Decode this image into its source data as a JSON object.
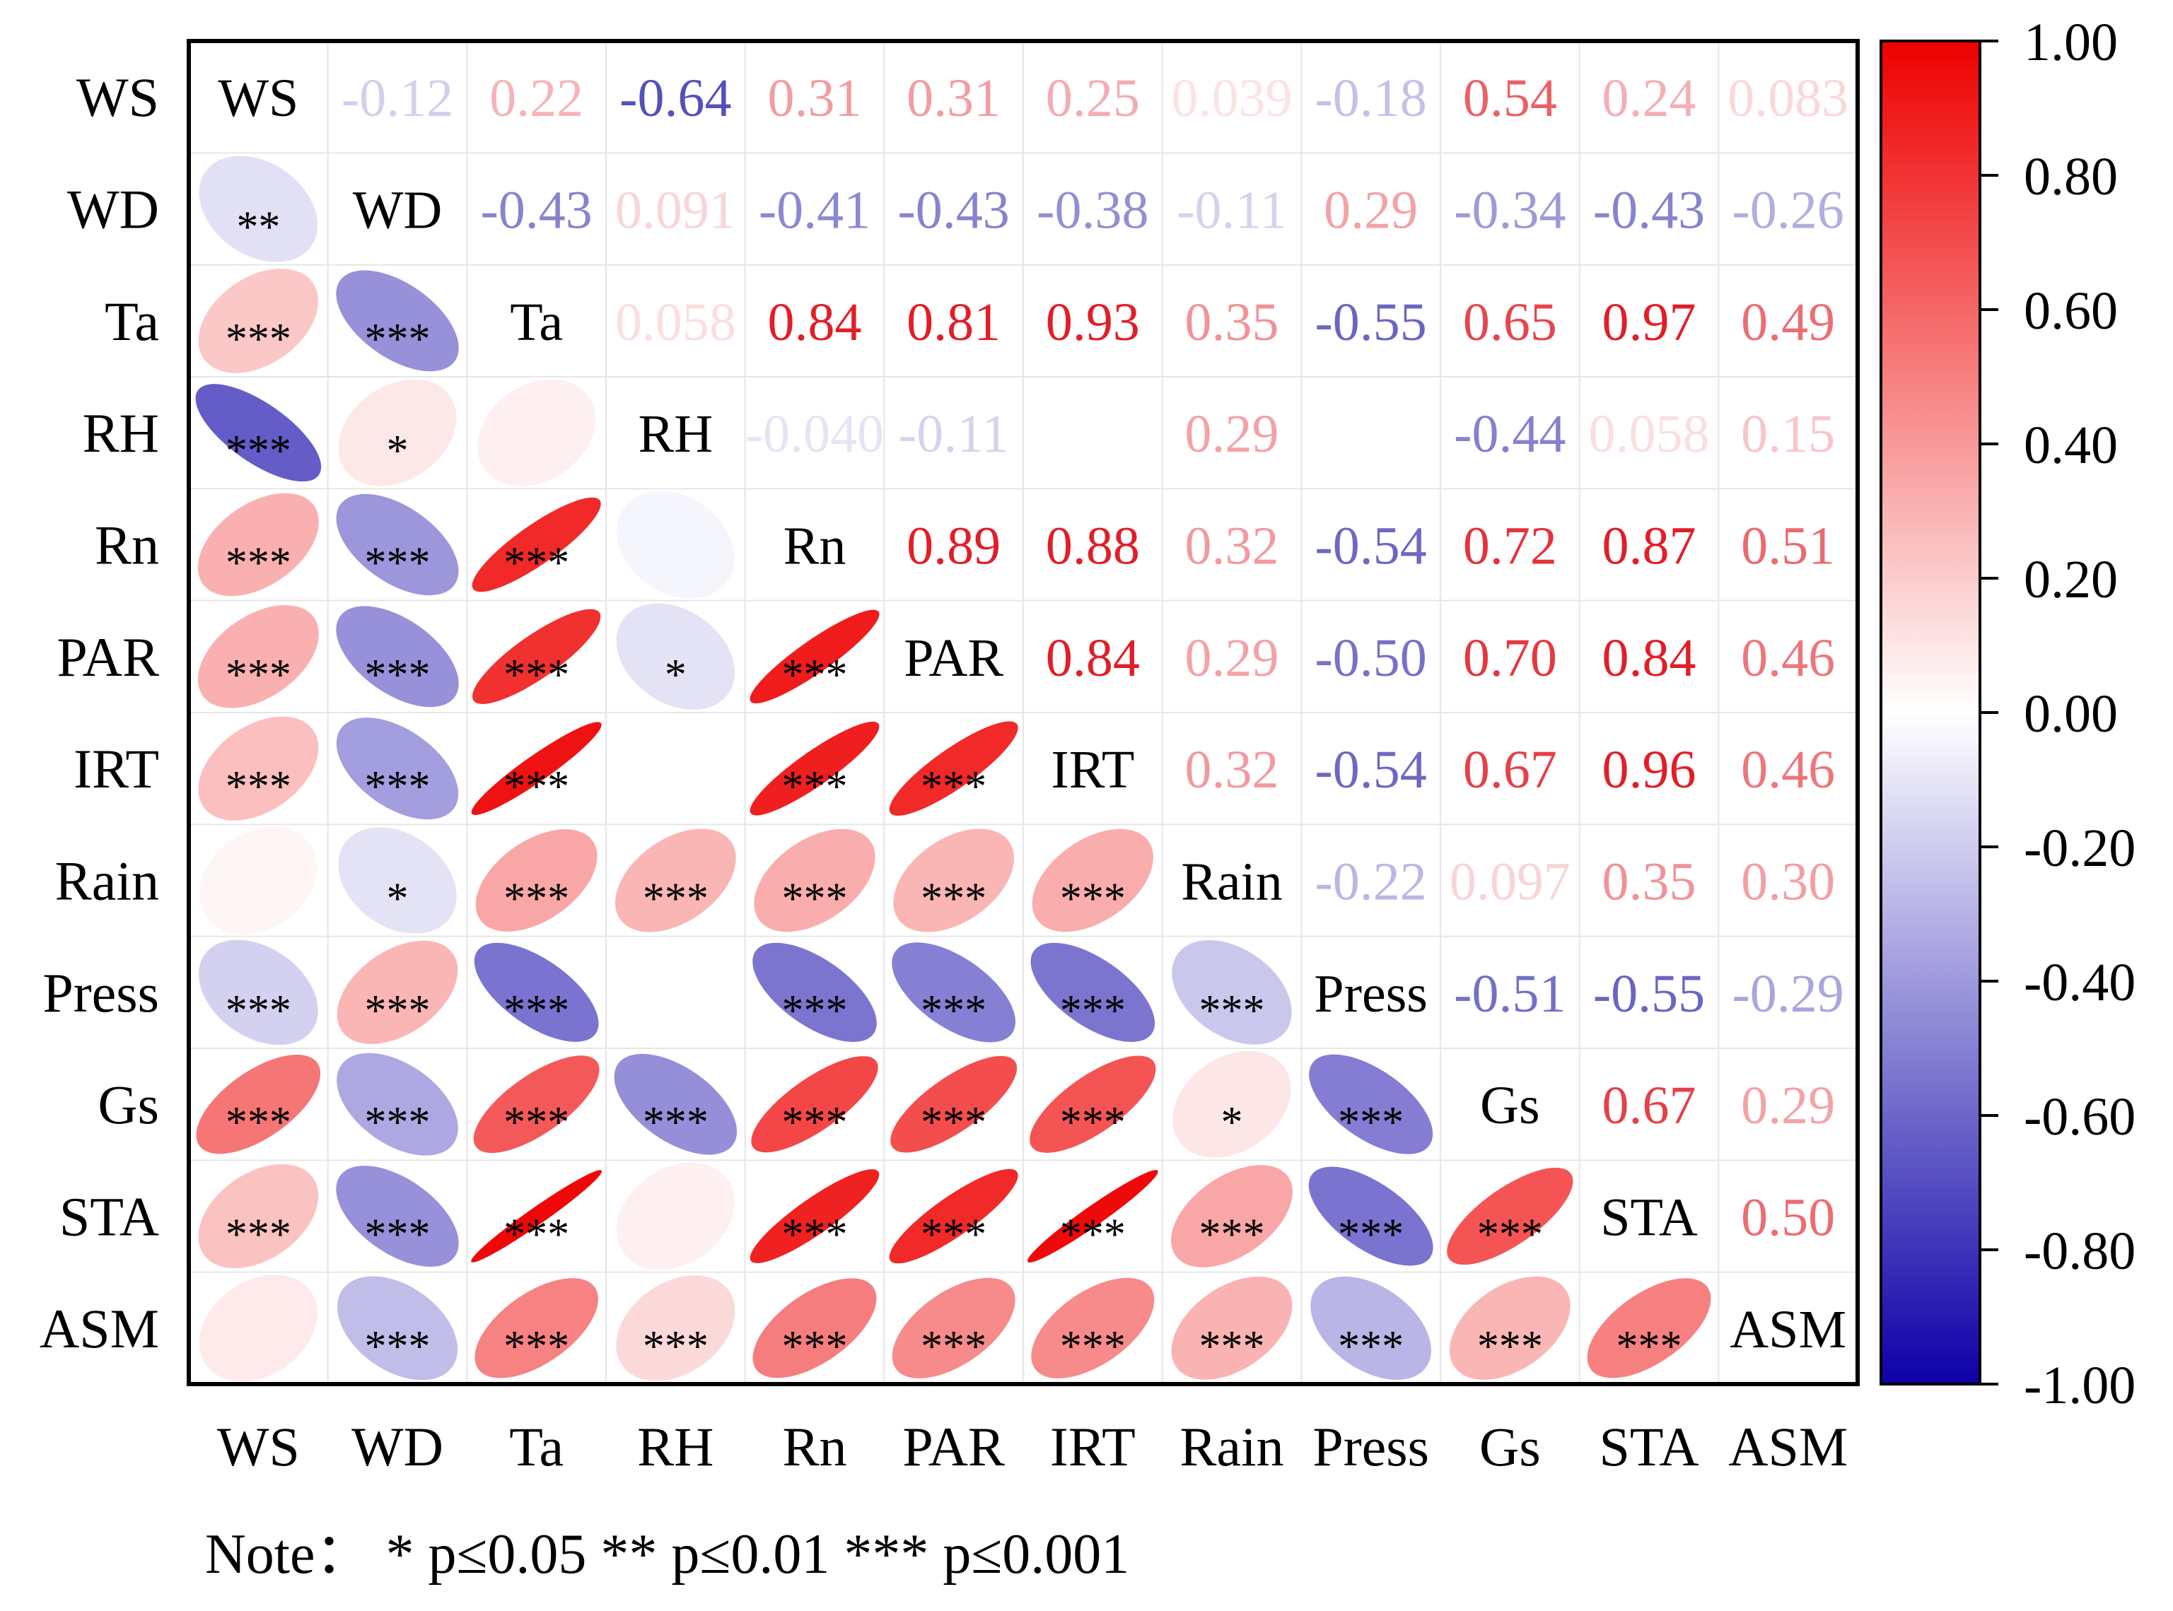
{
  "chart_data": {
    "type": "heatmap",
    "subtype": "correlation-ellipse-matrix",
    "variables": [
      "WS",
      "WD",
      "Ta",
      "RH",
      "Rn",
      "PAR",
      "IRT",
      "Rain",
      "Press",
      "Gs",
      "STA",
      "ASM"
    ],
    "upper_triangle_labels": [
      [
        "WS",
        "-0.12",
        "0.22",
        "-0.64",
        "0.31",
        "0.31",
        "0.25",
        "0.039",
        "-0.18",
        "0.54",
        "0.24",
        "0.083"
      ],
      [
        null,
        "WD",
        "-0.43",
        "0.091",
        "-0.41",
        "-0.43",
        "-0.38",
        "-0.11",
        "0.29",
        "-0.34",
        "-0.43",
        "-0.26"
      ],
      [
        null,
        null,
        "Ta",
        "0.058",
        "0.84",
        "0.81",
        "0.93",
        "0.35",
        "-0.55",
        "0.65",
        "0.97",
        "0.49"
      ],
      [
        null,
        null,
        null,
        "RH",
        "-0.040",
        "-0.11",
        "",
        "0.29",
        "",
        "-0.44",
        "0.058",
        "0.15"
      ],
      [
        null,
        null,
        null,
        null,
        "Rn",
        "0.89",
        "0.88",
        "0.32",
        "-0.54",
        "0.72",
        "0.87",
        "0.51"
      ],
      [
        null,
        null,
        null,
        null,
        null,
        "PAR",
        "0.84",
        "0.29",
        "-0.50",
        "0.70",
        "0.84",
        "0.46"
      ],
      [
        null,
        null,
        null,
        null,
        null,
        null,
        "IRT",
        "0.32",
        "-0.54",
        "0.67",
        "0.96",
        "0.46"
      ],
      [
        null,
        null,
        null,
        null,
        null,
        null,
        null,
        "Rain",
        "-0.22",
        "0.097",
        "0.35",
        "0.30"
      ],
      [
        null,
        null,
        null,
        null,
        null,
        null,
        null,
        null,
        "Press",
        "-0.51",
        "-0.55",
        "-0.29"
      ],
      [
        null,
        null,
        null,
        null,
        null,
        null,
        null,
        null,
        null,
        "Gs",
        "0.67",
        "0.29"
      ],
      [
        null,
        null,
        null,
        null,
        null,
        null,
        null,
        null,
        null,
        null,
        "STA",
        "0.50"
      ],
      [
        null,
        null,
        null,
        null,
        null,
        null,
        null,
        null,
        null,
        null,
        null,
        "ASM"
      ]
    ],
    "lower_triangle_values": [
      [
        null,
        null,
        null,
        null,
        null,
        null,
        null,
        null,
        null,
        null,
        null,
        null
      ],
      [
        -0.12,
        null,
        null,
        null,
        null,
        null,
        null,
        null,
        null,
        null,
        null,
        null
      ],
      [
        0.22,
        -0.43,
        null,
        null,
        null,
        null,
        null,
        null,
        null,
        null,
        null,
        null
      ],
      [
        -0.64,
        0.091,
        0.058,
        null,
        null,
        null,
        null,
        null,
        null,
        null,
        null,
        null
      ],
      [
        0.31,
        -0.41,
        0.84,
        -0.04,
        null,
        null,
        null,
        null,
        null,
        null,
        null,
        null
      ],
      [
        0.31,
        -0.43,
        0.81,
        -0.11,
        0.89,
        null,
        null,
        null,
        null,
        null,
        null,
        null
      ],
      [
        0.25,
        -0.38,
        0.93,
        null,
        0.88,
        0.84,
        null,
        null,
        null,
        null,
        null,
        null
      ],
      [
        0.039,
        -0.11,
        0.35,
        0.29,
        0.32,
        0.29,
        0.32,
        null,
        null,
        null,
        null,
        null
      ],
      [
        -0.18,
        0.29,
        -0.55,
        null,
        -0.54,
        -0.5,
        -0.54,
        -0.22,
        null,
        null,
        null,
        null
      ],
      [
        0.54,
        -0.34,
        0.65,
        -0.44,
        0.72,
        0.7,
        0.67,
        0.097,
        -0.51,
        null,
        null,
        null
      ],
      [
        0.24,
        -0.43,
        0.97,
        0.058,
        0.87,
        0.84,
        0.96,
        0.35,
        -0.55,
        0.67,
        null,
        null
      ],
      [
        0.083,
        -0.26,
        0.49,
        0.15,
        0.51,
        0.46,
        0.46,
        0.3,
        -0.29,
        0.29,
        0.5,
        null
      ]
    ],
    "lower_triangle_significance": [
      [
        null,
        null,
        null,
        null,
        null,
        null,
        null,
        null,
        null,
        null,
        null,
        null
      ],
      [
        "**",
        null,
        null,
        null,
        null,
        null,
        null,
        null,
        null,
        null,
        null,
        null
      ],
      [
        "***",
        "***",
        null,
        null,
        null,
        null,
        null,
        null,
        null,
        null,
        null,
        null
      ],
      [
        "***",
        "*",
        "",
        null,
        null,
        null,
        null,
        null,
        null,
        null,
        null,
        null
      ],
      [
        "***",
        "***",
        "***",
        "",
        null,
        null,
        null,
        null,
        null,
        null,
        null,
        null
      ],
      [
        "***",
        "***",
        "***",
        "*",
        "***",
        null,
        null,
        null,
        null,
        null,
        null,
        null
      ],
      [
        "***",
        "***",
        "***",
        null,
        "***",
        "***",
        null,
        null,
        null,
        null,
        null,
        null
      ],
      [
        "",
        "*",
        "***",
        "***",
        "***",
        "***",
        "***",
        null,
        null,
        null,
        null,
        null
      ],
      [
        "***",
        "***",
        "***",
        null,
        "***",
        "***",
        "***",
        "***",
        null,
        null,
        null,
        null
      ],
      [
        "***",
        "***",
        "***",
        "***",
        "***",
        "***",
        "***",
        "*",
        "***",
        null,
        null,
        null
      ],
      [
        "***",
        "***",
        "***",
        "",
        "***",
        "***",
        "***",
        "***",
        "***",
        "***",
        null,
        null
      ],
      [
        "",
        "***",
        "***",
        "***",
        "***",
        "***",
        "***",
        "***",
        "***",
        "***",
        "***",
        null
      ]
    ],
    "colorbar": {
      "range": [
        -1.0,
        1.0
      ],
      "ticks": [
        "1.00",
        "0.80",
        "0.60",
        "0.40",
        "0.20",
        "0.00",
        "-0.20",
        "-0.40",
        "-0.60",
        "-0.80",
        "-1.00"
      ],
      "colors": {
        "negative": "#0d00a8",
        "zero": "#ffffff",
        "positive": "#ee0000"
      }
    },
    "note": "Note：  * p≤0.05   ** p≤0.01   *** p≤0.001"
  }
}
